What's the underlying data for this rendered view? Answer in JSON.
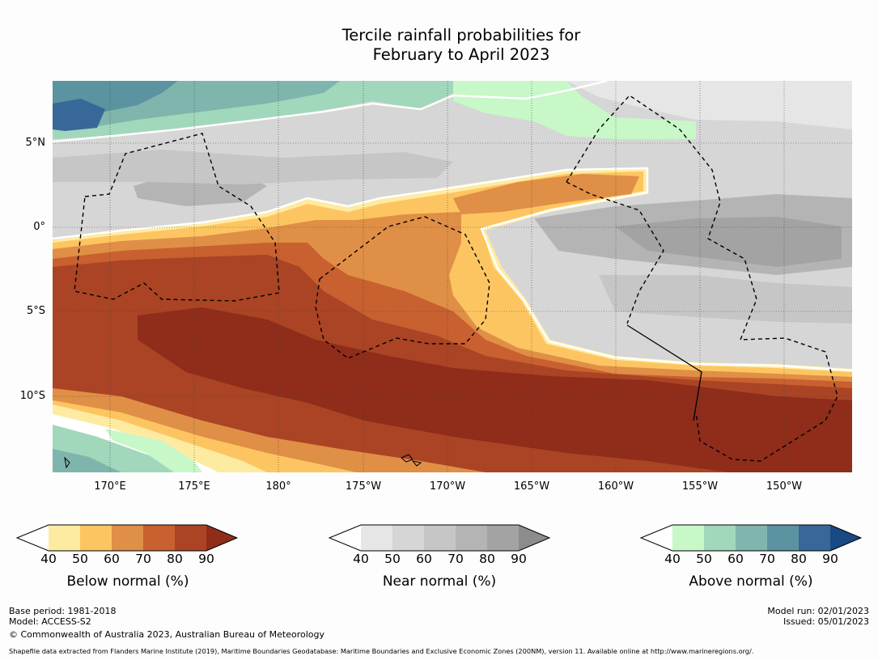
{
  "title_line1": "Tercile rainfall probabilities for",
  "title_line2": "February to April 2023",
  "lat_labels": [
    "5°N",
    "0°",
    "5°S",
    "10°S"
  ],
  "lon_labels": [
    "170°E",
    "175°E",
    "180°",
    "175°W",
    "170°W",
    "165°W",
    "160°W",
    "155°W",
    "150°W"
  ],
  "colorbars": [
    {
      "name": "Below normal (%)",
      "ticks": [
        "40",
        "50",
        "60",
        "70",
        "80",
        "90"
      ],
      "colors": [
        "#ffffff",
        "#feeba2",
        "#fdc561",
        "#e08f46",
        "#c8602f",
        "#aa4424",
        "#8f2c1a"
      ]
    },
    {
      "name": "Near normal (%)",
      "ticks": [
        "40",
        "50",
        "60",
        "70",
        "80",
        "90"
      ],
      "colors": [
        "#ffffff",
        "#e6e6e6",
        "#d6d6d6",
        "#c6c6c6",
        "#b4b4b4",
        "#a3a3a3",
        "#8c8c8c"
      ]
    },
    {
      "name": "Above normal (%)",
      "ticks": [
        "40",
        "50",
        "60",
        "70",
        "80",
        "90"
      ],
      "colors": [
        "#ffffff",
        "#c8f7c8",
        "#a1d7bb",
        "#7fb5ac",
        "#5c93a1",
        "#376899",
        "#184a83"
      ]
    }
  ],
  "footer": {
    "base_period": "Base period: 1981-2018",
    "model": "Model: ACCESS-S2",
    "copyright": "© Commonwealth of Australia 2023, Australian Bureau of Meteorology",
    "model_run": "Model run: 02/01/2023",
    "issued": "Issued: 05/01/2023",
    "shapefile": "Shapefile data extracted from Flanders Marine Institute (2019), Maritime Boundaries Geodatabase: Maritime Boundaries and Exclusive Economic Zones (200NM), version 11. Available online at http://www.marineregions.org/."
  }
}
